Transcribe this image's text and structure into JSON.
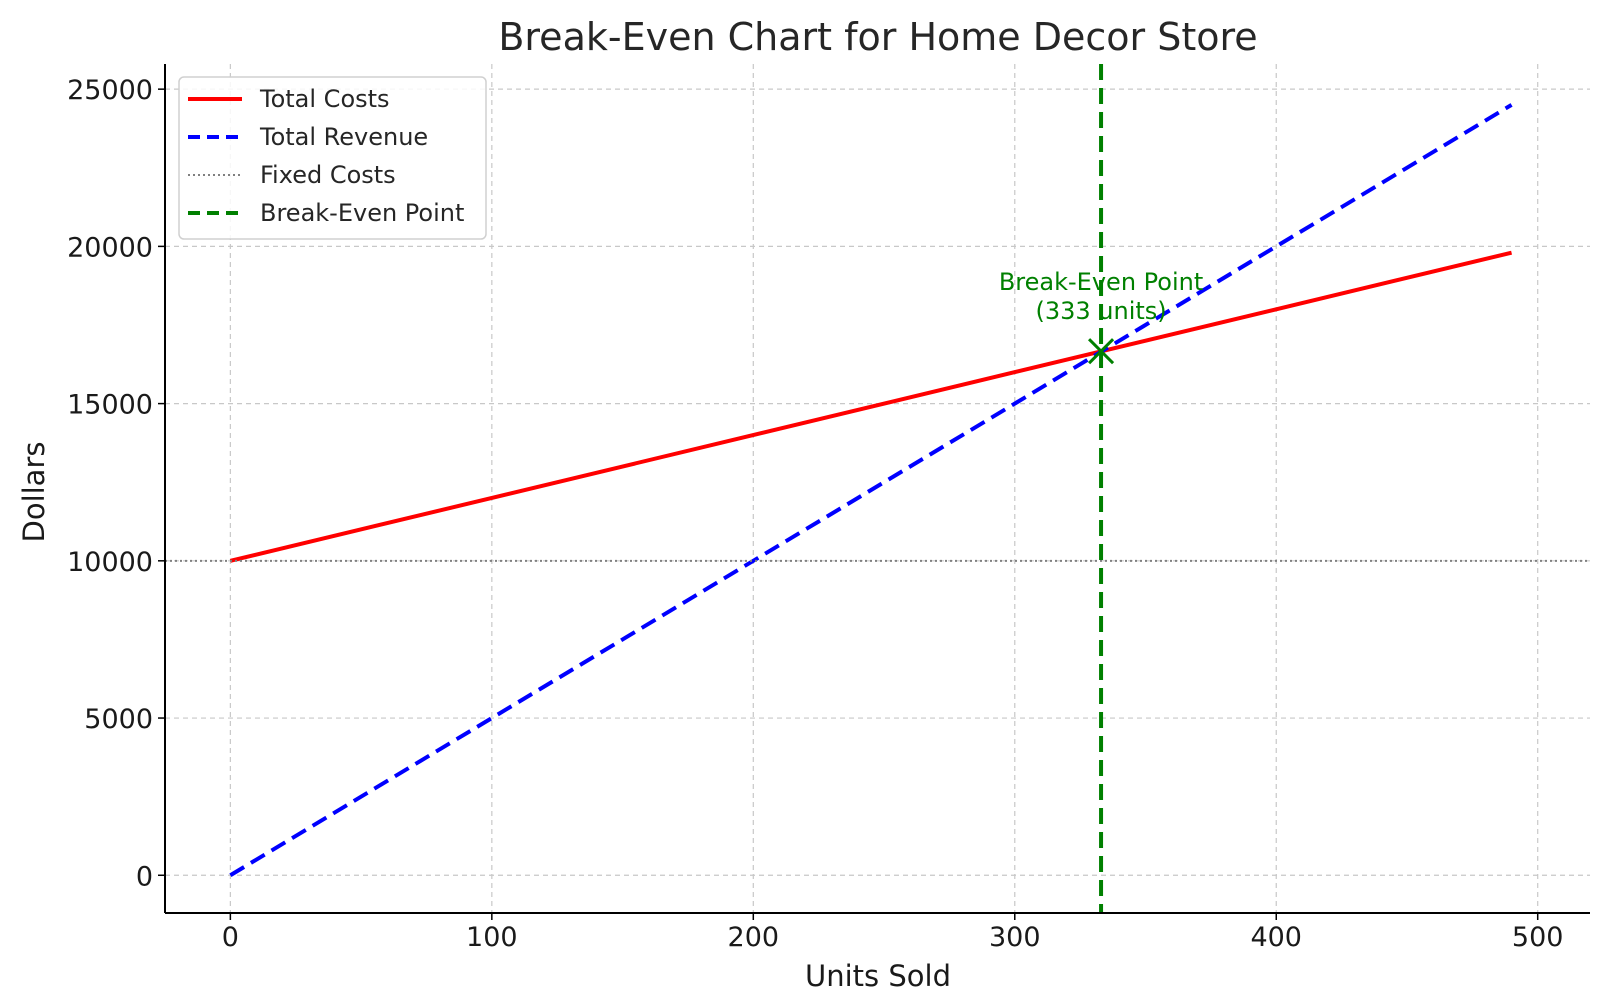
{
  "chart_data": {
    "type": "line",
    "title": "Break-Even Chart for Home Decor Store",
    "xlabel": "Units Sold",
    "ylabel": "Dollars",
    "xlim": [
      -25,
      520
    ],
    "ylim": [
      -1200,
      25800
    ],
    "xticks": [
      0,
      100,
      200,
      300,
      400,
      500
    ],
    "yticks": [
      0,
      5000,
      10000,
      15000,
      20000,
      25000
    ],
    "grid": true,
    "legend_position": "top-left",
    "series": [
      {
        "name": "Total Costs",
        "color": "#ff0000",
        "style": "solid",
        "x": [
          0,
          490
        ],
        "y": [
          10000,
          19800
        ]
      },
      {
        "name": "Total Revenue",
        "color": "#0000ff",
        "style": "dashed",
        "x": [
          0,
          490
        ],
        "y": [
          0,
          24500
        ]
      },
      {
        "name": "Fixed Costs",
        "color": "#808080",
        "style": "dotted",
        "y_constant": 10000
      },
      {
        "name": "Break-Even Point",
        "color": "#008000",
        "style": "dashed",
        "x_constant": 333
      }
    ],
    "break_even": {
      "x": 333,
      "y": 16667,
      "marker": "x",
      "annotation_line1": "Break-Even Point",
      "annotation_line2": "(333 units)",
      "color": "#008000"
    }
  }
}
